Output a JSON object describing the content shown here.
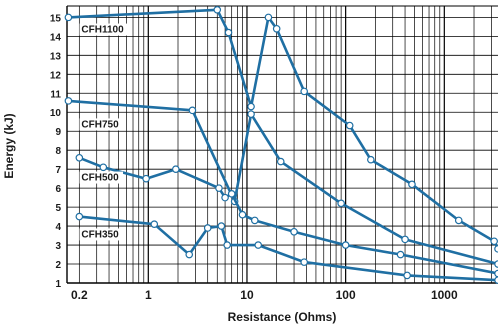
{
  "chart_data": {
    "type": "line",
    "xlabel": "Resistance (Ohms)",
    "ylabel": "Energy (kJ)",
    "xscale": "log",
    "xlim": [
      0.15,
      3500
    ],
    "ylim": [
      1,
      15.6
    ],
    "x_tick_labels": [
      {
        "value": 0.2,
        "label": "0.2"
      },
      {
        "value": 1,
        "label": "1"
      },
      {
        "value": 10,
        "label": "10"
      },
      {
        "value": 100,
        "label": "100"
      },
      {
        "value": 1000,
        "label": "1000"
      }
    ],
    "y_ticks": [
      1,
      2,
      3,
      4,
      5,
      6,
      7,
      8,
      9,
      10,
      11,
      12,
      13,
      14,
      15
    ],
    "grid": true,
    "colors": {
      "line": "#1f6fa3",
      "marker_fill": "#ffffff",
      "grid": "#000000",
      "text": "#1a1a1a"
    },
    "series": [
      {
        "name": "CFH1100",
        "label_at": [
          0.21,
          14.2
        ],
        "points": [
          [
            0.155,
            15.0
          ],
          [
            5,
            15.4
          ],
          [
            6.5,
            14.2
          ],
          [
            11,
            10.3
          ],
          [
            16.5,
            15.0
          ],
          [
            20,
            14.4
          ],
          [
            38,
            11.1
          ],
          [
            110,
            9.3
          ],
          [
            180,
            7.5
          ],
          [
            470,
            6.2
          ],
          [
            1400,
            4.3
          ],
          [
            3200,
            3.2
          ],
          [
            3500,
            2.8
          ]
        ]
      },
      {
        "name": "CFH750",
        "label_at": [
          0.21,
          9.2
        ],
        "points": [
          [
            0.155,
            10.6
          ],
          [
            2.8,
            10.1
          ],
          [
            7.5,
            5.3
          ],
          [
            11,
            9.9
          ],
          [
            22,
            7.4
          ],
          [
            90,
            5.2
          ],
          [
            400,
            3.3
          ],
          [
            3500,
            2.0
          ]
        ]
      },
      {
        "name": "CFH500",
        "label_at": [
          0.21,
          6.4
        ],
        "points": [
          [
            0.2,
            7.6
          ],
          [
            0.35,
            7.1
          ],
          [
            0.95,
            6.5
          ],
          [
            1.9,
            7.0
          ],
          [
            5.2,
            6.0
          ],
          [
            6,
            5.5
          ],
          [
            7,
            5.7
          ],
          [
            9,
            4.6
          ],
          [
            12,
            4.3
          ],
          [
            30,
            3.7
          ],
          [
            100,
            3.0
          ],
          [
            360,
            2.5
          ],
          [
            3500,
            1.5
          ]
        ]
      },
      {
        "name": "CFH350",
        "label_at": [
          0.21,
          3.4
        ],
        "points": [
          [
            0.2,
            4.5
          ],
          [
            1.15,
            4.1
          ],
          [
            2.6,
            2.5
          ],
          [
            4,
            3.9
          ],
          [
            5.5,
            4.0
          ],
          [
            6.3,
            3.0
          ],
          [
            13,
            3.0
          ],
          [
            38,
            2.1
          ],
          [
            420,
            1.4
          ],
          [
            3500,
            1.15
          ]
        ]
      }
    ]
  }
}
